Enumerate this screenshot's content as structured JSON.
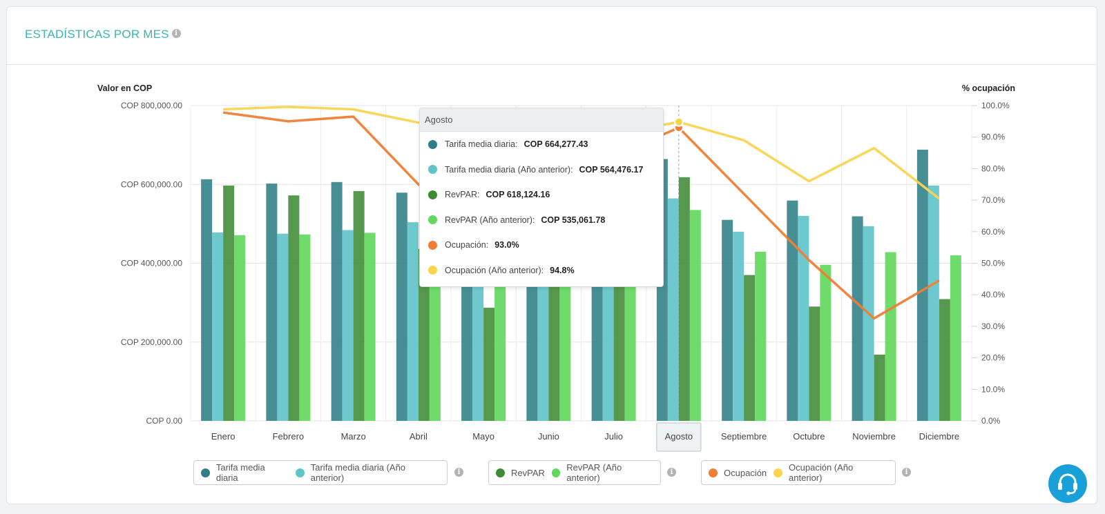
{
  "header": {
    "title": "ESTADÍSTICAS POR MES"
  },
  "colors": {
    "tarifa": "#2e7f85",
    "tarifa_prev": "#62c4cb",
    "revpar": "#3f8a35",
    "revpar_prev": "#63d85e",
    "ocupacion": "#f07d35",
    "ocupacion_prev": "#fad44f"
  },
  "chart_data": {
    "type": "bar",
    "y_left_label": "Valor en COP",
    "y_right_label": "% ocupación",
    "y_left_ticks": [
      "COP 0.00",
      "COP 200,000.00",
      "COP 400,000.00",
      "COP 600,000.00",
      "COP 800,000.00"
    ],
    "y_right_ticks": [
      "0.0%",
      "10.0%",
      "20.0%",
      "30.0%",
      "40.0%",
      "50.0%",
      "60.0%",
      "70.0%",
      "80.0%",
      "90.0%",
      "100.0%"
    ],
    "y_left_range": [
      0,
      800000
    ],
    "y_right_range": [
      0,
      100
    ],
    "categories": [
      "Enero",
      "Febrero",
      "Marzo",
      "Abril",
      "Mayo",
      "Junio",
      "Julio",
      "Agosto",
      "Septiembre",
      "Octubre",
      "Noviembre",
      "Diciembre"
    ],
    "highlighted_category": "Agosto",
    "series": [
      {
        "name": "Tarifa media diaria",
        "type": "bar",
        "axis": "left",
        "values": [
          613000,
          602000,
          606000,
          579000,
          440000,
          480000,
          540000,
          664277.43,
          510000,
          559000,
          519000,
          688000
        ]
      },
      {
        "name": "Tarifa media diaria (Año anterior)",
        "type": "bar",
        "axis": "left",
        "values": [
          478000,
          475000,
          484000,
          504000,
          420000,
          440000,
          500000,
          564476.17,
          480000,
          520000,
          494000,
          597000
        ]
      },
      {
        "name": "RevPAR",
        "type": "bar",
        "axis": "left",
        "values": [
          597000,
          572000,
          583000,
          436000,
          287000,
          420000,
          480000,
          618124.16,
          370000,
          290000,
          168000,
          309000
        ]
      },
      {
        "name": "RevPAR (Año anterior)",
        "type": "bar",
        "axis": "left",
        "values": [
          471000,
          473000,
          477000,
          400000,
          390000,
          420000,
          550000,
          535061.78,
          429000,
          396000,
          428000,
          420000
        ]
      },
      {
        "name": "Ocupación",
        "type": "line",
        "axis": "right",
        "values": [
          97.8,
          95.0,
          96.5,
          75.0,
          62.0,
          70.0,
          84.0,
          93.0,
          72.0,
          51.0,
          32.5,
          44.5
        ]
      },
      {
        "name": "Ocupación (Año anterior)",
        "type": "line",
        "axis": "right",
        "values": [
          98.8,
          99.6,
          98.8,
          94.6,
          88.0,
          90.0,
          91.0,
          94.8,
          89.0,
          76.0,
          86.5,
          70.5
        ]
      }
    ],
    "legend": [
      {
        "items": [
          "Tarifa media diaria",
          "Tarifa media diaria (Año anterior)"
        ]
      },
      {
        "items": [
          "RevPAR",
          "RevPAR (Año anterior)"
        ]
      },
      {
        "items": [
          "Ocupación",
          "Ocupación (Año anterior)"
        ]
      }
    ]
  },
  "tooltip": {
    "title": "Agosto",
    "rows": [
      {
        "label": "Tarifa media diaria:",
        "value": "COP 664,277.43"
      },
      {
        "label": "Tarifa media diaria (Año anterior):",
        "value": "COP 564,476.17"
      },
      {
        "label": "RevPAR:",
        "value": "COP 618,124.16"
      },
      {
        "label": "RevPAR (Año anterior):",
        "value": "COP 535,061.78"
      },
      {
        "label": "Ocupación:",
        "value": "93.0%"
      },
      {
        "label": "Ocupación (Año anterior):",
        "value": "94.8%"
      }
    ]
  }
}
